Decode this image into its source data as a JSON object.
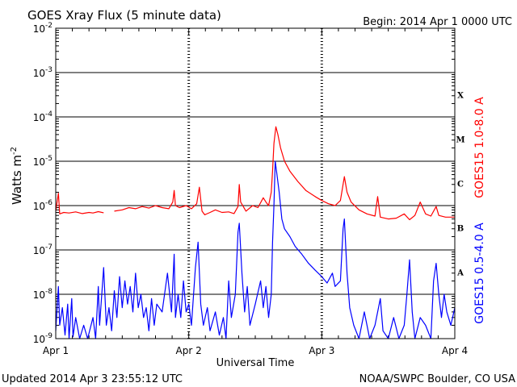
{
  "header": {
    "title": "GOES Xray Flux (5 minute data)",
    "begin": "Begin:  2014 Apr 1 0000 UTC"
  },
  "footer": {
    "updated": "Updated 2014 Apr  3 23:55:12 UTC",
    "credit": "NOAA/SWPC Boulder, CO USA"
  },
  "chart_data": {
    "type": "line",
    "title": "GOES Xray Flux (5 minute data)",
    "xlabel": "Universal Time",
    "ylabel": "Watts m",
    "ylabel_superscript": "-2",
    "ylabel_parts": {
      "base": "Watts m",
      "sup": "-2"
    },
    "yscale": "log",
    "ylim": [
      1e-09,
      0.01
    ],
    "xlim": [
      0,
      3
    ],
    "x_unit": "days since 2014 Apr 1 0000 UTC",
    "y_ticks": [
      {
        "value": 1e-09,
        "base": "10",
        "exp": "-9"
      },
      {
        "value": 1e-08,
        "base": "10",
        "exp": "-8"
      },
      {
        "value": 1e-07,
        "base": "10",
        "exp": "-7"
      },
      {
        "value": 1e-06,
        "base": "10",
        "exp": "-6"
      },
      {
        "value": 1e-05,
        "base": "10",
        "exp": "-5"
      },
      {
        "value": 0.0001,
        "base": "10",
        "exp": "-4"
      },
      {
        "value": 0.001,
        "base": "10",
        "exp": "-3"
      },
      {
        "value": 0.01,
        "base": "10",
        "exp": "-2"
      }
    ],
    "x_ticks": [
      {
        "value": 0,
        "label": "Apr 1"
      },
      {
        "value": 1,
        "label": "Apr 2"
      },
      {
        "value": 2,
        "label": "Apr 3"
      },
      {
        "value": 3,
        "label": "Apr 4"
      }
    ],
    "flare_classes": [
      {
        "label": "A",
        "low": 1e-08,
        "high": 1e-07
      },
      {
        "label": "B",
        "low": 1e-07,
        "high": 1e-06
      },
      {
        "label": "C",
        "low": 1e-06,
        "high": 1e-05
      },
      {
        "label": "M",
        "low": 1e-05,
        "high": 0.0001
      },
      {
        "label": "X",
        "low": 0.0001,
        "high": 0.001
      }
    ],
    "grid": "horizontal at each decade from 1e-8 to 1e-3; dashed vertical at day boundaries",
    "series": [
      {
        "name": "GOES15 1.0-8.0 A",
        "color": "#ff0000",
        "points": [
          [
            0.0,
            7.5e-07
          ],
          [
            0.02,
            1.9e-06
          ],
          [
            0.03,
            6.5e-07
          ],
          [
            0.06,
            7e-07
          ],
          [
            0.1,
            6.8e-07
          ],
          [
            0.15,
            7.2e-07
          ],
          [
            0.2,
            6.6e-07
          ],
          [
            0.25,
            7e-07
          ],
          [
            0.28,
            6.8e-07
          ],
          [
            0.32,
            7.3e-07
          ],
          [
            0.36,
            6.9e-07
          ],
          [
            0.4,
            null
          ],
          [
            0.44,
            7.5e-07
          ],
          [
            0.5,
            8e-07
          ],
          [
            0.55,
            9e-07
          ],
          [
            0.6,
            8.5e-07
          ],
          [
            0.65,
            9.5e-07
          ],
          [
            0.7,
            8.8e-07
          ],
          [
            0.75,
            1e-06
          ],
          [
            0.8,
            9e-07
          ],
          [
            0.85,
            8.5e-07
          ],
          [
            0.88,
            1.2e-06
          ],
          [
            0.89,
            2.2e-06
          ],
          [
            0.9,
            1e-06
          ],
          [
            0.93,
            9e-07
          ],
          [
            0.98,
            1e-06
          ],
          [
            1.02,
            8.5e-07
          ],
          [
            1.06,
            1.1e-06
          ],
          [
            1.08,
            2.6e-06
          ],
          [
            1.1,
            7.5e-07
          ],
          [
            1.12,
            6.2e-07
          ],
          [
            1.16,
            7e-07
          ],
          [
            1.2,
            8e-07
          ],
          [
            1.25,
            7e-07
          ],
          [
            1.3,
            7.2e-07
          ],
          [
            1.34,
            6.6e-07
          ],
          [
            1.37,
            9.5e-07
          ],
          [
            1.38,
            3e-06
          ],
          [
            1.39,
            1.2e-06
          ],
          [
            1.43,
            7.5e-07
          ],
          [
            1.48,
            1e-06
          ],
          [
            1.52,
            9e-07
          ],
          [
            1.56,
            1.5e-06
          ],
          [
            1.58,
            1.2e-06
          ],
          [
            1.6,
            1e-06
          ],
          [
            1.62,
            2e-06
          ],
          [
            1.63,
            6e-06
          ],
          [
            1.64,
            2.5e-05
          ],
          [
            1.655,
            6e-05
          ],
          [
            1.67,
            4e-05
          ],
          [
            1.69,
            2e-05
          ],
          [
            1.72,
            1e-05
          ],
          [
            1.76,
            6e-06
          ],
          [
            1.82,
            3.5e-06
          ],
          [
            1.88,
            2.2e-06
          ],
          [
            1.95,
            1.6e-06
          ],
          [
            2.0,
            1.3e-06
          ],
          [
            2.05,
            1.1e-06
          ],
          [
            2.1,
            1e-06
          ],
          [
            2.14,
            1.3e-06
          ],
          [
            2.17,
            4.5e-06
          ],
          [
            2.19,
            2e-06
          ],
          [
            2.22,
            1.2e-06
          ],
          [
            2.28,
            8e-07
          ],
          [
            2.34,
            6.5e-07
          ],
          [
            2.4,
            5.8e-07
          ],
          [
            2.42,
            1.6e-06
          ],
          [
            2.44,
            5.5e-07
          ],
          [
            2.5,
            5e-07
          ],
          [
            2.56,
            5.2e-07
          ],
          [
            2.62,
            6.5e-07
          ],
          [
            2.66,
            4.8e-07
          ],
          [
            2.7,
            6e-07
          ],
          [
            2.74,
            1.2e-06
          ],
          [
            2.78,
            6.5e-07
          ],
          [
            2.82,
            5.8e-07
          ],
          [
            2.86,
            9.5e-07
          ],
          [
            2.88,
            6e-07
          ],
          [
            2.93,
            5.5e-07
          ],
          [
            3.0,
            5.5e-07
          ]
        ]
      },
      {
        "name": "GOES15 0.5-4.0 A",
        "color": "#0000ff",
        "points": [
          [
            0.0,
            1.5e-09
          ],
          [
            0.02,
            1.5e-08
          ],
          [
            0.03,
            2e-09
          ],
          [
            0.05,
            5e-09
          ],
          [
            0.07,
            1.2e-09
          ],
          [
            0.09,
            6e-09
          ],
          [
            0.1,
            1e-09
          ],
          [
            0.12,
            8e-09
          ],
          [
            0.13,
            1.1e-09
          ],
          [
            0.15,
            3e-09
          ],
          [
            0.18,
            1e-09
          ],
          [
            0.21,
            2e-09
          ],
          [
            0.24,
            1e-09
          ],
          [
            0.28,
            3e-09
          ],
          [
            0.3,
            1e-09
          ],
          [
            0.32,
            1.5e-08
          ],
          [
            0.33,
            2e-09
          ],
          [
            0.36,
            4e-08
          ],
          [
            0.38,
            2e-09
          ],
          [
            0.4,
            5e-09
          ],
          [
            0.42,
            1.5e-09
          ],
          [
            0.44,
            1.2e-08
          ],
          [
            0.46,
            3e-09
          ],
          [
            0.48,
            2.5e-08
          ],
          [
            0.5,
            5e-09
          ],
          [
            0.52,
            2e-08
          ],
          [
            0.54,
            6e-09
          ],
          [
            0.56,
            1.5e-08
          ],
          [
            0.58,
            4e-09
          ],
          [
            0.6,
            3e-08
          ],
          [
            0.62,
            5e-09
          ],
          [
            0.64,
            1e-08
          ],
          [
            0.66,
            3e-09
          ],
          [
            0.68,
            5e-09
          ],
          [
            0.7,
            1.5e-09
          ],
          [
            0.72,
            8e-09
          ],
          [
            0.74,
            2e-09
          ],
          [
            0.76,
            6e-09
          ],
          [
            0.8,
            4e-09
          ],
          [
            0.84,
            3e-08
          ],
          [
            0.87,
            4e-09
          ],
          [
            0.89,
            8e-08
          ],
          [
            0.9,
            3e-09
          ],
          [
            0.92,
            1e-08
          ],
          [
            0.94,
            3e-09
          ],
          [
            0.96,
            2e-08
          ],
          [
            0.98,
            4e-09
          ],
          [
            1.0,
            6e-09
          ],
          [
            1.02,
            2e-09
          ],
          [
            1.05,
            4e-08
          ],
          [
            1.07,
            1.5e-07
          ],
          [
            1.09,
            6e-09
          ],
          [
            1.11,
            2e-09
          ],
          [
            1.14,
            5e-09
          ],
          [
            1.16,
            1.5e-09
          ],
          [
            1.2,
            4e-09
          ],
          [
            1.23,
            1.2e-09
          ],
          [
            1.26,
            3e-09
          ],
          [
            1.28,
            1e-09
          ],
          [
            1.3,
            2e-08
          ],
          [
            1.32,
            3e-09
          ],
          [
            1.35,
            1e-08
          ],
          [
            1.37,
            2.5e-07
          ],
          [
            1.38,
            4e-07
          ],
          [
            1.4,
            3e-08
          ],
          [
            1.42,
            4e-09
          ],
          [
            1.44,
            1.5e-08
          ],
          [
            1.46,
            2e-09
          ],
          [
            1.5,
            6e-09
          ],
          [
            1.54,
            2e-08
          ],
          [
            1.56,
            5e-09
          ],
          [
            1.58,
            1.5e-08
          ],
          [
            1.6,
            3e-09
          ],
          [
            1.62,
            1e-08
          ],
          [
            1.63,
            1.5e-07
          ],
          [
            1.64,
            1e-06
          ],
          [
            1.65,
            1e-05
          ],
          [
            1.66,
            6e-06
          ],
          [
            1.68,
            2e-06
          ],
          [
            1.7,
            5e-07
          ],
          [
            1.72,
            3e-07
          ],
          [
            1.76,
            2e-07
          ],
          [
            1.8,
            1.2e-07
          ],
          [
            1.85,
            8e-08
          ],
          [
            1.9,
            5e-08
          ],
          [
            1.95,
            3.5e-08
          ],
          [
            2.0,
            2.5e-08
          ],
          [
            2.04,
            1.8e-08
          ],
          [
            2.08,
            3e-08
          ],
          [
            2.1,
            1.5e-08
          ],
          [
            2.14,
            2e-08
          ],
          [
            2.16,
            3e-07
          ],
          [
            2.17,
            5e-07
          ],
          [
            2.19,
            3e-08
          ],
          [
            2.21,
            5e-09
          ],
          [
            2.24,
            2e-09
          ],
          [
            2.28,
            1e-09
          ],
          [
            2.32,
            4e-09
          ],
          [
            2.36,
            1e-09
          ],
          [
            2.4,
            2e-09
          ],
          [
            2.44,
            8e-09
          ],
          [
            2.46,
            1.5e-09
          ],
          [
            2.5,
            1e-09
          ],
          [
            2.54,
            3e-09
          ],
          [
            2.58,
            1e-09
          ],
          [
            2.62,
            2e-09
          ],
          [
            2.64,
            1e-08
          ],
          [
            2.66,
            6e-08
          ],
          [
            2.68,
            4e-09
          ],
          [
            2.7,
            1e-09
          ],
          [
            2.74,
            3e-09
          ],
          [
            2.78,
            2e-09
          ],
          [
            2.82,
            1e-09
          ],
          [
            2.84,
            2e-08
          ],
          [
            2.86,
            5e-08
          ],
          [
            2.88,
            1e-08
          ],
          [
            2.9,
            3e-09
          ],
          [
            2.92,
            1e-08
          ],
          [
            2.94,
            4e-09
          ],
          [
            2.97,
            2e-09
          ],
          [
            3.0,
            5e-09
          ]
        ]
      }
    ]
  }
}
